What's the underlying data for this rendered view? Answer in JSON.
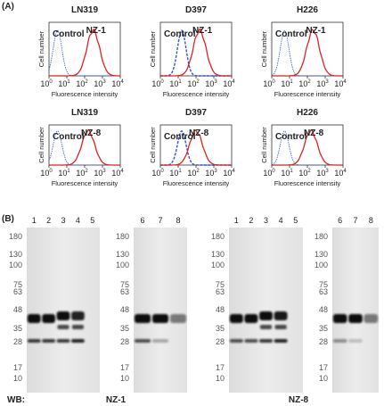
{
  "panel_a": {
    "label": "(A)",
    "y_axis_label": "Cell number",
    "x_axis_label": "Fluorescence intensity",
    "control": "Control",
    "x_ticks": [
      {
        "base": "10",
        "exp": "0"
      },
      {
        "base": "10",
        "exp": "1"
      },
      {
        "base": "10",
        "exp": "2"
      },
      {
        "base": "10",
        "exp": "3"
      },
      {
        "base": "10",
        "exp": "4"
      }
    ],
    "rows": [
      {
        "antibody": "NZ-1",
        "cells": [
          "LN319",
          "D397",
          "H226"
        ]
      },
      {
        "antibody": "NZ-8",
        "cells": [
          "LN319",
          "D397",
          "H226"
        ]
      }
    ]
  },
  "panel_b": {
    "label": "(B)",
    "wb_label": "WB:",
    "markers": [
      "180",
      "130",
      "100",
      "75",
      "63",
      "48",
      "35",
      "28",
      "17",
      "10"
    ],
    "blots": [
      {
        "antibody": "NZ-1",
        "lanes_left": [
          "1",
          "2",
          "3",
          "4",
          "5"
        ],
        "lanes_right": [
          "6",
          "7",
          "8"
        ]
      },
      {
        "antibody": "NZ-8",
        "lanes_left": [
          "1",
          "2",
          "3",
          "4",
          "5"
        ],
        "lanes_right": [
          "6",
          "7",
          "8"
        ]
      }
    ]
  }
}
